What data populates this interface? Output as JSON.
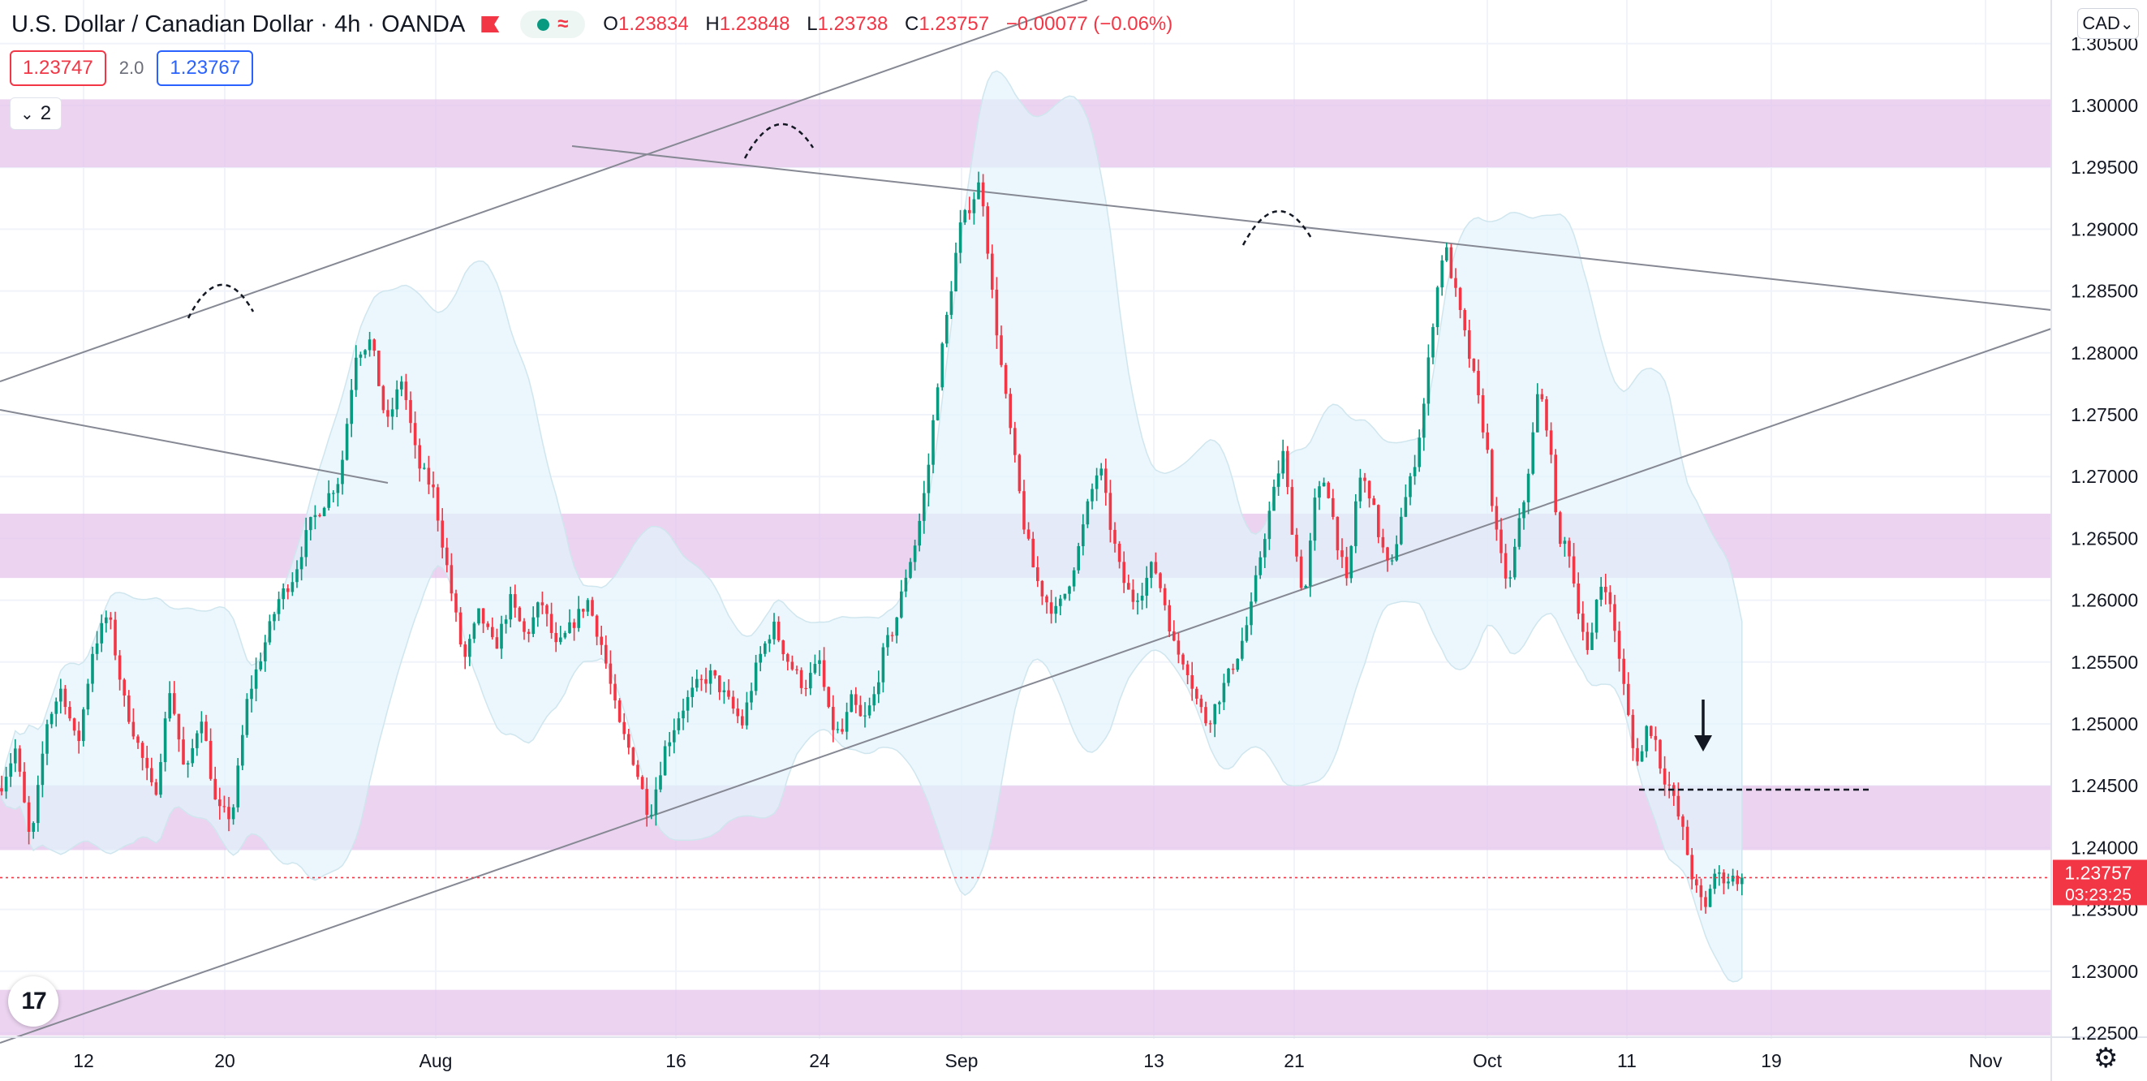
{
  "header": {
    "symbol": "U.S. Dollar / Canadian Dollar",
    "interval": "4h",
    "broker": "OANDA",
    "ohlc": {
      "o_label": "O",
      "o": "1.23834",
      "h_label": "H",
      "h": "1.23848",
      "l_label": "L",
      "l": "1.23738",
      "c_label": "C",
      "c": "1.23757",
      "change": "−0.00077 (−0.06%)"
    },
    "bid": "1.23747",
    "spread": "2.0",
    "ask": "1.23767",
    "indicator_count": "2",
    "currency": "CAD"
  },
  "colors": {
    "up": "#089981",
    "down": "#f23645",
    "zone": "#e6c6ec",
    "band": "#e3f4fb",
    "line": "#787b86"
  },
  "icons": {
    "flag": "flag-icon",
    "dot": "market-status-icon",
    "wave": "indicator-icon",
    "gear": "settings-gear-icon",
    "logo": "tradingview-logo-icon",
    "chevron": "chevron-down-icon"
  },
  "chart_data": {
    "type": "candlestick",
    "ylim": [
      1.2215,
      1.3095
    ],
    "y_ticks": [
      "1.30500",
      "1.30000",
      "1.29500",
      "1.29000",
      "1.28500",
      "1.28000",
      "1.27500",
      "1.27000",
      "1.26500",
      "1.26000",
      "1.25500",
      "1.25000",
      "1.24500",
      "1.24000",
      "1.23500",
      "1.23000",
      "1.22500"
    ],
    "x_ticks": [
      "12",
      "20",
      "Aug",
      "16",
      "24",
      "Sep",
      "13",
      "21",
      "Oct",
      "11",
      "19",
      "Nov"
    ],
    "last_price": "1.23757",
    "countdown": "03:23:25",
    "zones": [
      [
        1.295,
        1.3005
      ],
      [
        1.2618,
        1.267
      ],
      [
        1.2398,
        1.245
      ],
      [
        1.2248,
        1.2285
      ]
    ],
    "path": [
      [
        1.2448,
        1.248,
        1.24
      ],
      [
        1.25,
        1.253
      ],
      [
        1.248
      ],
      [
        1.256,
        1.259
      ],
      [
        1.252
      ],
      [
        1.248,
        1.244
      ],
      [
        1.253
      ],
      [
        1.2455
      ],
      [
        1.251
      ],
      [
        1.243,
        1.2425
      ],
      [
        1.252
      ],
      [
        1.256
      ],
      [
        1.26,
        1.262
      ],
      [
        1.266
      ],
      [
        1.268,
        1.27
      ],
      [
        1.28,
        1.281
      ],
      [
        1.274,
        1.278
      ],
      [
        1.271
      ],
      [
        1.269
      ],
      [
        1.262,
        1.255
      ],
      [
        1.259
      ],
      [
        1.256
      ],
      [
        1.26
      ],
      [
        1.257
      ],
      [
        1.26
      ],
      [
        1.256
      ],
      [
        1.258
      ],
      [
        1.26
      ],
      [
        1.256
      ],
      [
        1.25
      ],
      [
        1.247
      ],
      [
        1.2425
      ],
      [
        1.248
      ],
      [
        1.251
      ],
      [
        1.253
      ],
      [
        1.254
      ],
      [
        1.252
      ],
      [
        1.25
      ],
      [
        1.255
      ],
      [
        1.258
      ],
      [
        1.255
      ],
      [
        1.253
      ],
      [
        1.255
      ],
      [
        1.25
      ],
      [
        1.249
      ],
      [
        1.252
      ],
      [
        1.25
      ],
      [
        1.252
      ],
      [
        1.256
      ],
      [
        1.258
      ],
      [
        1.262
      ],
      [
        1.265
      ],
      [
        1.27
      ],
      [
        1.278
      ],
      [
        1.284
      ],
      [
        1.29
      ],
      [
        1.292
      ],
      [
        1.294
      ],
      [
        1.285
      ],
      [
        1.278
      ],
      [
        1.272
      ],
      [
        1.266
      ],
      [
        1.262
      ],
      [
        1.26
      ],
      [
        1.259
      ],
      [
        1.261
      ],
      [
        1.264
      ],
      [
        1.268
      ],
      [
        1.271
      ],
      [
        1.266
      ],
      [
        1.262
      ],
      [
        1.26
      ],
      [
        1.261
      ],
      [
        1.263
      ],
      [
        1.26
      ],
      [
        1.256
      ],
      [
        1.255
      ],
      [
        1.252
      ],
      [
        1.25
      ],
      [
        1.252
      ],
      [
        1.254
      ],
      [
        1.256
      ],
      [
        1.259
      ],
      [
        1.264
      ],
      [
        1.268
      ],
      [
        1.272
      ],
      [
        1.265
      ],
      [
        1.26
      ],
      [
        1.268
      ],
      [
        1.27
      ],
      [
        1.265
      ],
      [
        1.261
      ],
      [
        1.27
      ],
      [
        1.269
      ],
      [
        1.265
      ],
      [
        1.262
      ],
      [
        1.267
      ],
      [
        1.27
      ],
      [
        1.275
      ],
      [
        1.283
      ],
      [
        1.289
      ],
      [
        1.285
      ],
      [
        1.281
      ],
      [
        1.277
      ],
      [
        1.272
      ],
      [
        1.266
      ],
      [
        1.263
      ],
      [
        1.261
      ],
      [
        1.265
      ],
      [
        1.268
      ],
      [
        1.272
      ],
      [
        1.277
      ],
      [
        1.275
      ],
      [
        1.27
      ],
      [
        1.264
      ],
      [
        1.265
      ],
      [
        1.261
      ],
      [
        1.258
      ],
      [
        1.255
      ],
      [
        1.26
      ],
      [
        1.262
      ],
      [
        1.259
      ],
      [
        1.256
      ],
      [
        1.252
      ],
      [
        1.248
      ],
      [
        1.247
      ],
      [
        1.25
      ],
      [
        1.249
      ],
      [
        1.246
      ],
      [
        1.245
      ],
      [
        1.243
      ],
      [
        1.241
      ],
      [
        1.238
      ],
      [
        1.236
      ],
      [
        1.235
      ],
      [
        1.238
      ],
      [
        1.23757
      ]
    ]
  }
}
